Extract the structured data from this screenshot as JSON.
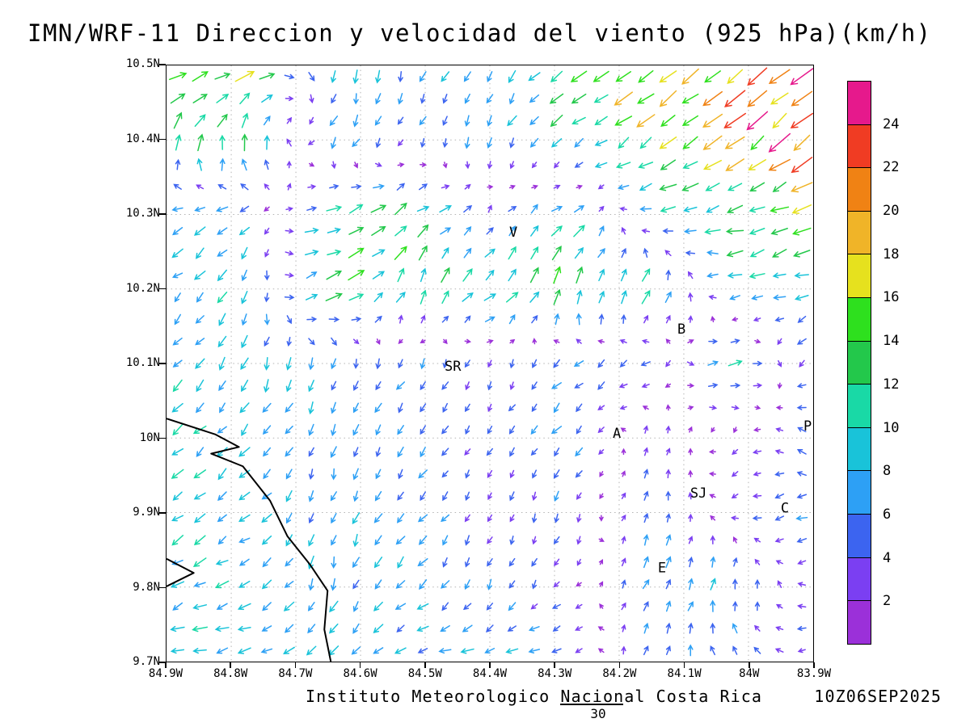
{
  "caption": {
    "institute": "Instituto Meteorologico Nacional Costa Rica",
    "datetime": "10Z06SEP2025",
    "frame_number": "30"
  },
  "chart_data": {
    "type": "quiver",
    "title": "IMN/WRF-11 Direccion y velocidad del viento (925 hPa)(km/h)",
    "subtitle": "",
    "xlabel": "",
    "ylabel": "",
    "x_ticks": [
      "84.9W",
      "84.8W",
      "84.7W",
      "84.6W",
      "84.5W",
      "84.4W",
      "84.3W",
      "84.2W",
      "84.1W",
      "84W",
      "83.9W"
    ],
    "y_ticks": [
      "10.5N",
      "10.4N",
      "10.3N",
      "10.2N",
      "10.1N",
      "10N",
      "9.9N",
      "9.8N",
      "9.7N"
    ],
    "lon_range": [
      -84.9,
      -83.9
    ],
    "lat_range": [
      9.7,
      10.5
    ],
    "grid": "dotted",
    "colorbar": {
      "unit": "km/h",
      "position": "right",
      "levels": [
        2,
        4,
        6,
        8,
        10,
        12,
        14,
        16,
        18,
        20,
        22,
        24
      ],
      "colors": [
        "#9b30d9",
        "#7b3ff2",
        "#3c64f0",
        "#2da0f5",
        "#19c3d9",
        "#19d9a6",
        "#23c84b",
        "#2ee01e",
        "#e6e11e",
        "#f0b428",
        "#f08214",
        "#f03c23",
        "#e6198c"
      ]
    },
    "wind_field": {
      "units": "km/h",
      "lons": [
        -84.9,
        -84.775,
        -84.65,
        -84.525,
        -84.4,
        -84.275,
        -84.15,
        -84.025,
        -83.9
      ],
      "lats": [
        10.5,
        10.4,
        10.3,
        10.2,
        10.1,
        10.0,
        9.9,
        9.8,
        9.7
      ],
      "u": [
        [
          14,
          16,
          0,
          -2,
          -4,
          -10,
          -14,
          -16,
          -17
        ],
        [
          4,
          2,
          -4,
          -2,
          -2,
          -8,
          -12,
          -15,
          -16
        ],
        [
          -8,
          -6,
          10,
          10,
          2,
          9,
          -8,
          -12,
          -13
        ],
        [
          -6,
          -4,
          13,
          4,
          8,
          4,
          6,
          -8,
          -9
        ],
        [
          -6,
          -3,
          -1,
          -3,
          -1,
          -4,
          -5,
          10,
          -5
        ],
        [
          -7,
          -6,
          -2,
          -4,
          -2,
          -5,
          2,
          -2,
          -4
        ],
        [
          -7,
          -6,
          -2,
          -4,
          -2,
          -1,
          2,
          -3,
          -6
        ],
        [
          -8,
          -8,
          -2,
          -5,
          -2,
          -2,
          4,
          2,
          -4
        ],
        [
          -10,
          -8,
          -6,
          -7,
          -8,
          -5,
          2,
          -4,
          -3
        ]
      ],
      "v": [
        [
          6,
          4,
          -8,
          -8,
          -6,
          -8,
          -11,
          -13,
          -14
        ],
        [
          10,
          14,
          -6,
          -3,
          -7,
          -6,
          -9,
          -12,
          -13
        ],
        [
          -3,
          -4,
          5,
          7,
          4,
          6,
          -2,
          -3,
          -5
        ],
        [
          -5,
          -8,
          6,
          10,
          8,
          12,
          10,
          -2,
          -3
        ],
        [
          -6,
          -7,
          -6,
          -5,
          -3,
          -4,
          -3,
          2,
          -4
        ],
        [
          -5,
          -6,
          -6,
          -5,
          -3,
          -5,
          4,
          -2,
          3
        ],
        [
          -6,
          -5,
          -7,
          -5,
          -3,
          -5,
          6,
          -1,
          -2
        ],
        [
          -5,
          -3,
          -8,
          -5,
          -5,
          -2,
          6,
          7,
          -1
        ],
        [
          -2,
          -2,
          -5,
          -2,
          -2,
          -2,
          6,
          4,
          -2
        ]
      ]
    },
    "cities": [
      {
        "label": "V",
        "lon": -84.37,
        "lat": 10.27
      },
      {
        "label": "B",
        "lon": -84.11,
        "lat": 10.14
      },
      {
        "label": "SR",
        "lon": -84.47,
        "lat": 10.09
      },
      {
        "label": "A",
        "lon": -84.21,
        "lat": 10.0
      },
      {
        "label": "SJ",
        "lon": -84.09,
        "lat": 9.92
      },
      {
        "label": "C",
        "lon": -83.95,
        "lat": 9.9
      },
      {
        "label": "E",
        "lon": -84.14,
        "lat": 9.82
      },
      {
        "label": "P",
        "lon": -83.915,
        "lat": 10.01
      }
    ],
    "coastline": [
      [
        [
          -84.9,
          10.026
        ],
        [
          -84.825,
          10.005
        ],
        [
          -84.788,
          9.988
        ],
        [
          -84.831,
          9.979
        ],
        [
          -84.782,
          9.962
        ],
        [
          -84.74,
          9.916
        ],
        [
          -84.713,
          9.868
        ],
        [
          -84.678,
          9.83
        ],
        [
          -84.651,
          9.795
        ],
        [
          -84.656,
          9.743
        ],
        [
          -84.646,
          9.7
        ]
      ],
      [
        [
          -84.9,
          9.838
        ],
        [
          -84.858,
          9.819
        ],
        [
          -84.9,
          9.801
        ]
      ]
    ]
  }
}
